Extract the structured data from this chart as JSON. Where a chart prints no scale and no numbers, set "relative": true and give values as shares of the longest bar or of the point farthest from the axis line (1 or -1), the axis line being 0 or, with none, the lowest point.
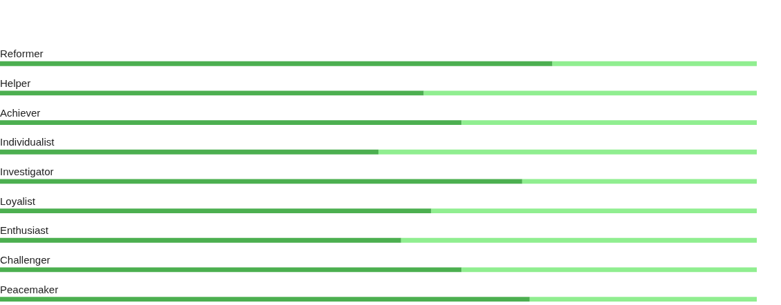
{
  "chart_data": {
    "type": "bar",
    "orientation": "horizontal",
    "stacked": true,
    "relative": true,
    "categories": [
      "Reformer",
      "Helper",
      "Achiever",
      "Individualist",
      "Investigator",
      "Loyalist",
      "Enthusiast",
      "Challenger",
      "Peacemaker"
    ],
    "series": [
      {
        "color": "#4caf50",
        "values": [
          0.73,
          0.56,
          0.61,
          0.5,
          0.69,
          0.57,
          0.53,
          0.61,
          0.7
        ]
      },
      {
        "color": "#90ee90",
        "values": [
          0.27,
          0.44,
          0.39,
          0.5,
          0.31,
          0.43,
          0.47,
          0.39,
          0.3
        ]
      }
    ]
  }
}
